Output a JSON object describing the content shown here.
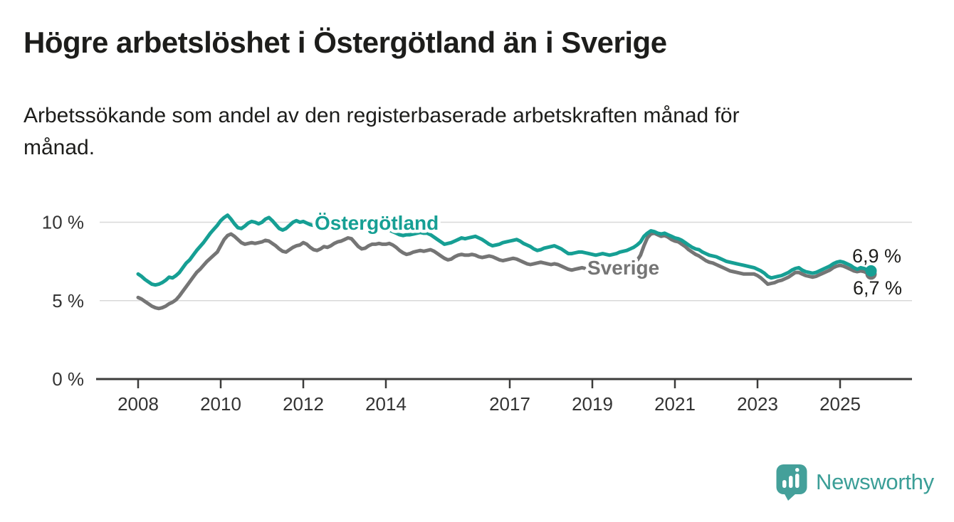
{
  "page": {
    "title": "Högre arbetslöshet i Östergötland än i Sverige",
    "subtitle_lines": [
      "Arbetssökande som andel av den registerbaserade arbetskraften månad för",
      "månad."
    ]
  },
  "branding": {
    "name": "Newsworthy",
    "logo_icon": "speech-bubble-bar-chart",
    "color": "#3b9e97"
  },
  "chart_data": {
    "type": "line",
    "title": "Högre arbetslöshet i Östergötland än i Sverige",
    "subtitle": "Arbetssökande som andel av den registerbaserade arbetskraften månad för månad.",
    "unit": "%",
    "grid": "horizontal-only",
    "legend_position": "inline-labels-on-lines",
    "x_start": {
      "year": 2008,
      "month": 1
    },
    "x_end": {
      "year": 2025,
      "month": 10
    },
    "yaxis": {
      "range": [
        0,
        11.5
      ],
      "gridlines": [
        5,
        10
      ],
      "ticks": [
        {
          "value": 0,
          "label": "0 %"
        },
        {
          "value": 5,
          "label": "5 %"
        },
        {
          "value": 10,
          "label": "10 %"
        }
      ]
    },
    "xaxis": {
      "ticks": [
        {
          "year": 2008,
          "label": "2008"
        },
        {
          "year": 2010,
          "label": "2010"
        },
        {
          "year": 2012,
          "label": "2012"
        },
        {
          "year": 2014,
          "label": "2014"
        },
        {
          "year": 2017,
          "label": "2017"
        },
        {
          "year": 2019,
          "label": "2019"
        },
        {
          "year": 2021,
          "label": "2021"
        },
        {
          "year": 2023,
          "label": "2023"
        },
        {
          "year": 2025,
          "label": "2025"
        }
      ]
    },
    "series": [
      {
        "name": "Östergötland",
        "slug": "oestergoetland",
        "color": "#169f94",
        "end_label": "6,9 %",
        "end_value": 6.9,
        "values": [
          6.7,
          6.55,
          6.35,
          6.2,
          6.05,
          6.0,
          6.05,
          6.15,
          6.3,
          6.5,
          6.45,
          6.6,
          6.8,
          7.1,
          7.4,
          7.6,
          7.9,
          8.2,
          8.45,
          8.7,
          9.0,
          9.3,
          9.55,
          9.8,
          10.1,
          10.3,
          10.45,
          10.2,
          9.9,
          9.65,
          9.6,
          9.75,
          9.95,
          10.05,
          10.0,
          9.9,
          10.0,
          10.2,
          10.3,
          10.1,
          9.85,
          9.6,
          9.5,
          9.6,
          9.8,
          10.0,
          10.1,
          10.0,
          10.05,
          9.95,
          9.85,
          9.8,
          9.85,
          9.7,
          9.65,
          9.7,
          9.8,
          9.9,
          9.95,
          9.9,
          9.95,
          10.0,
          9.9,
          9.8,
          9.65,
          9.55,
          9.5,
          9.55,
          9.65,
          9.7,
          9.75,
          9.7,
          9.6,
          9.5,
          9.4,
          9.3,
          9.2,
          9.15,
          9.2,
          9.2,
          9.25,
          9.3,
          9.35,
          9.3,
          9.3,
          9.2,
          9.05,
          8.9,
          8.75,
          8.6,
          8.65,
          8.7,
          8.8,
          8.9,
          9.0,
          8.95,
          9.0,
          9.05,
          9.1,
          9.0,
          8.9,
          8.75,
          8.6,
          8.5,
          8.55,
          8.6,
          8.7,
          8.75,
          8.8,
          8.85,
          8.9,
          8.8,
          8.65,
          8.55,
          8.45,
          8.3,
          8.2,
          8.25,
          8.35,
          8.4,
          8.45,
          8.5,
          8.4,
          8.3,
          8.15,
          8.0,
          8.0,
          8.05,
          8.1,
          8.1,
          8.05,
          8.0,
          7.95,
          7.9,
          7.95,
          8.0,
          7.95,
          7.9,
          7.95,
          8.0,
          8.1,
          8.15,
          8.2,
          8.3,
          8.4,
          8.55,
          8.75,
          9.1,
          9.3,
          9.45,
          9.4,
          9.3,
          9.25,
          9.3,
          9.2,
          9.1,
          9.0,
          8.95,
          8.85,
          8.7,
          8.55,
          8.4,
          8.3,
          8.25,
          8.1,
          8.0,
          7.9,
          7.85,
          7.8,
          7.7,
          7.6,
          7.5,
          7.45,
          7.4,
          7.35,
          7.3,
          7.25,
          7.2,
          7.15,
          7.1,
          7.0,
          6.9,
          6.75,
          6.55,
          6.45,
          6.5,
          6.55,
          6.6,
          6.7,
          6.8,
          6.95,
          7.05,
          7.1,
          6.95,
          6.85,
          6.8,
          6.75,
          6.8,
          6.9,
          7.0,
          7.1,
          7.2,
          7.35,
          7.45,
          7.5,
          7.45,
          7.35,
          7.25,
          7.1,
          7.0,
          7.1,
          7.05,
          6.95,
          6.9
        ]
      },
      {
        "name": "Sverige",
        "slug": "sverige",
        "color": "#757575",
        "end_label": "6,7 %",
        "end_value": 6.7,
        "values": [
          5.2,
          5.1,
          4.95,
          4.8,
          4.65,
          4.55,
          4.5,
          4.55,
          4.65,
          4.8,
          4.9,
          5.05,
          5.3,
          5.6,
          5.9,
          6.2,
          6.5,
          6.8,
          7.0,
          7.25,
          7.5,
          7.7,
          7.9,
          8.1,
          8.5,
          8.9,
          9.15,
          9.25,
          9.1,
          8.9,
          8.7,
          8.6,
          8.65,
          8.7,
          8.65,
          8.7,
          8.75,
          8.85,
          8.8,
          8.65,
          8.5,
          8.3,
          8.15,
          8.1,
          8.25,
          8.4,
          8.5,
          8.55,
          8.7,
          8.6,
          8.4,
          8.25,
          8.2,
          8.3,
          8.45,
          8.4,
          8.5,
          8.65,
          8.75,
          8.8,
          8.9,
          9.0,
          8.95,
          8.7,
          8.45,
          8.3,
          8.35,
          8.5,
          8.6,
          8.6,
          8.65,
          8.6,
          8.6,
          8.65,
          8.55,
          8.4,
          8.2,
          8.05,
          7.95,
          8.0,
          8.1,
          8.15,
          8.2,
          8.15,
          8.2,
          8.25,
          8.15,
          8.0,
          7.85,
          7.7,
          7.6,
          7.65,
          7.8,
          7.9,
          7.95,
          7.9,
          7.9,
          7.95,
          7.9,
          7.8,
          7.75,
          7.8,
          7.85,
          7.8,
          7.7,
          7.6,
          7.55,
          7.6,
          7.65,
          7.7,
          7.65,
          7.55,
          7.45,
          7.35,
          7.3,
          7.35,
          7.4,
          7.45,
          7.4,
          7.35,
          7.3,
          7.35,
          7.3,
          7.2,
          7.1,
          7.0,
          6.95,
          7.0,
          7.05,
          7.1,
          7.05,
          7.0,
          7.0,
          7.0,
          6.95,
          6.9,
          6.9,
          6.95,
          7.0,
          7.0,
          7.05,
          7.1,
          7.15,
          7.25,
          7.4,
          7.55,
          7.9,
          8.5,
          9.0,
          9.25,
          9.3,
          9.2,
          9.1,
          9.15,
          9.05,
          8.9,
          8.8,
          8.75,
          8.6,
          8.45,
          8.25,
          8.1,
          7.95,
          7.85,
          7.7,
          7.55,
          7.45,
          7.4,
          7.3,
          7.2,
          7.1,
          7.0,
          6.9,
          6.85,
          6.8,
          6.75,
          6.7,
          6.7,
          6.7,
          6.7,
          6.6,
          6.45,
          6.25,
          6.05,
          6.1,
          6.15,
          6.25,
          6.3,
          6.4,
          6.5,
          6.65,
          6.8,
          6.8,
          6.7,
          6.6,
          6.55,
          6.5,
          6.55,
          6.65,
          6.75,
          6.85,
          6.95,
          7.1,
          7.2,
          7.25,
          7.2,
          7.1,
          7.0,
          6.9,
          6.85,
          6.9,
          6.85,
          6.75,
          6.7
        ]
      }
    ]
  }
}
